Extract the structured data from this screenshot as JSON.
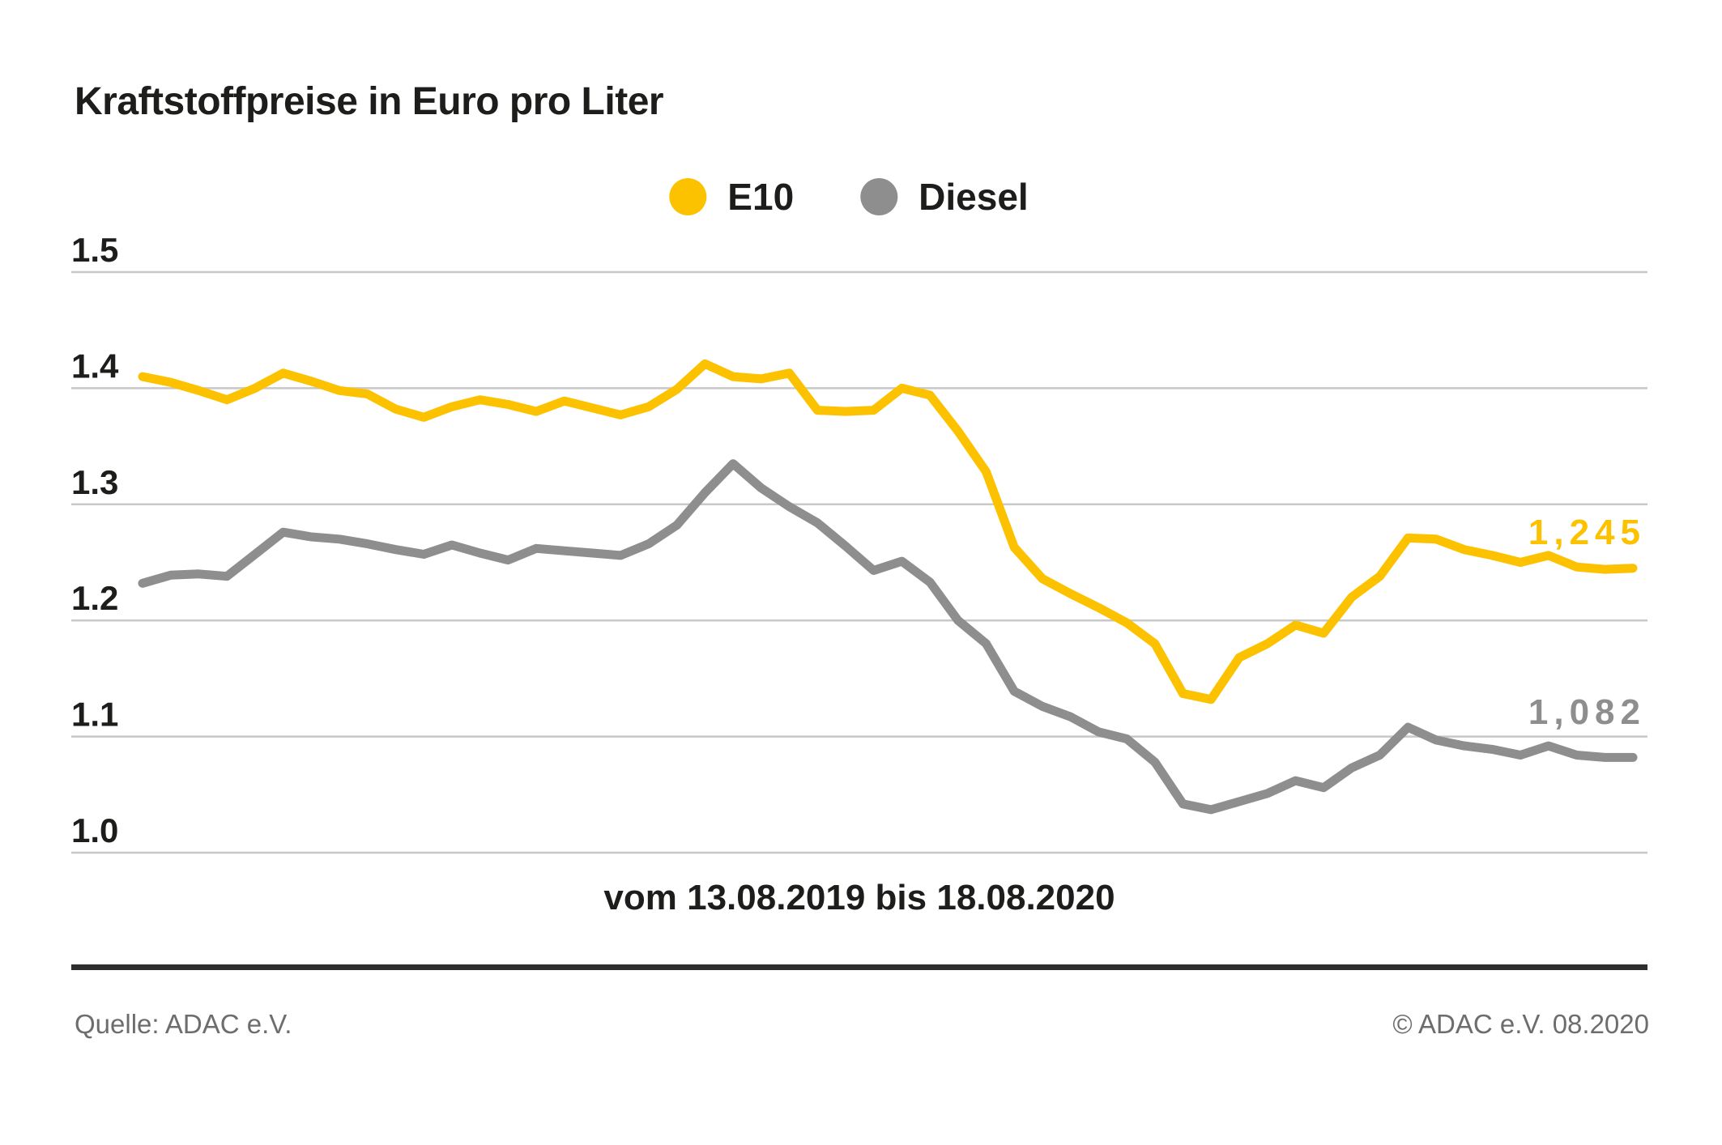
{
  "title": "Kraftstoffpreise in Euro pro Liter",
  "xaxis": {
    "label": "vom 13.08.2019 bis 18.08.2020"
  },
  "footer": {
    "source": "Quelle: ADAC e.V.",
    "copyright": "© ADAC e.V. 08.2020"
  },
  "colors": {
    "e10": "#FCC200",
    "diesel": "#8E8E8E",
    "gridline": "#C8C8C8",
    "text_dark": "#1D1D1B",
    "text_gray": "#6D6D6D",
    "footer_rule": "#2E2E2E"
  },
  "chart_data": {
    "type": "line",
    "title": "Kraftstoffpreise in Euro pro Liter",
    "x_range_label": "vom 13.08.2019 bis 18.08.2020",
    "x_start": "13.08.2019",
    "x_end": "18.08.2020",
    "x_interval": "weekly",
    "unit": "Euro pro Liter",
    "ylim": [
      1.0,
      1.5
    ],
    "yticks": [
      1.5,
      1.4,
      1.3,
      1.2,
      1.1,
      1.0
    ],
    "ytick_labels": [
      "1.5",
      "1.4",
      "1.3",
      "1.2",
      "1.1",
      "1.0"
    ],
    "grid": true,
    "legend_position": "top-center",
    "series": [
      {
        "name": "E10",
        "color": "#FCC200",
        "end_label": "1,245",
        "end_value": 1.245,
        "values": [
          1.41,
          1.405,
          1.398,
          1.39,
          1.4,
          1.413,
          1.406,
          1.398,
          1.395,
          1.382,
          1.375,
          1.384,
          1.39,
          1.386,
          1.38,
          1.389,
          1.383,
          1.377,
          1.384,
          1.399,
          1.421,
          1.41,
          1.408,
          1.413,
          1.381,
          1.38,
          1.381,
          1.4,
          1.394,
          1.363,
          1.328,
          1.263,
          1.236,
          1.223,
          1.211,
          1.198,
          1.18,
          1.137,
          1.132,
          1.168,
          1.18,
          1.196,
          1.189,
          1.22,
          1.238,
          1.271,
          1.27,
          1.261,
          1.256,
          1.25,
          1.256,
          1.246,
          1.244,
          1.245
        ]
      },
      {
        "name": "Diesel",
        "color": "#8E8E8E",
        "end_label": "1,082",
        "end_value": 1.082,
        "values": [
          1.232,
          1.239,
          1.24,
          1.238,
          1.257,
          1.276,
          1.272,
          1.27,
          1.266,
          1.261,
          1.257,
          1.265,
          1.258,
          1.252,
          1.262,
          1.26,
          1.258,
          1.256,
          1.266,
          1.282,
          1.31,
          1.335,
          1.314,
          1.298,
          1.284,
          1.264,
          1.243,
          1.251,
          1.233,
          1.2,
          1.18,
          1.139,
          1.126,
          1.117,
          1.104,
          1.098,
          1.078,
          1.042,
          1.037,
          1.044,
          1.051,
          1.062,
          1.056,
          1.073,
          1.084,
          1.108,
          1.097,
          1.092,
          1.089,
          1.084,
          1.092,
          1.084,
          1.082,
          1.082
        ]
      }
    ]
  }
}
